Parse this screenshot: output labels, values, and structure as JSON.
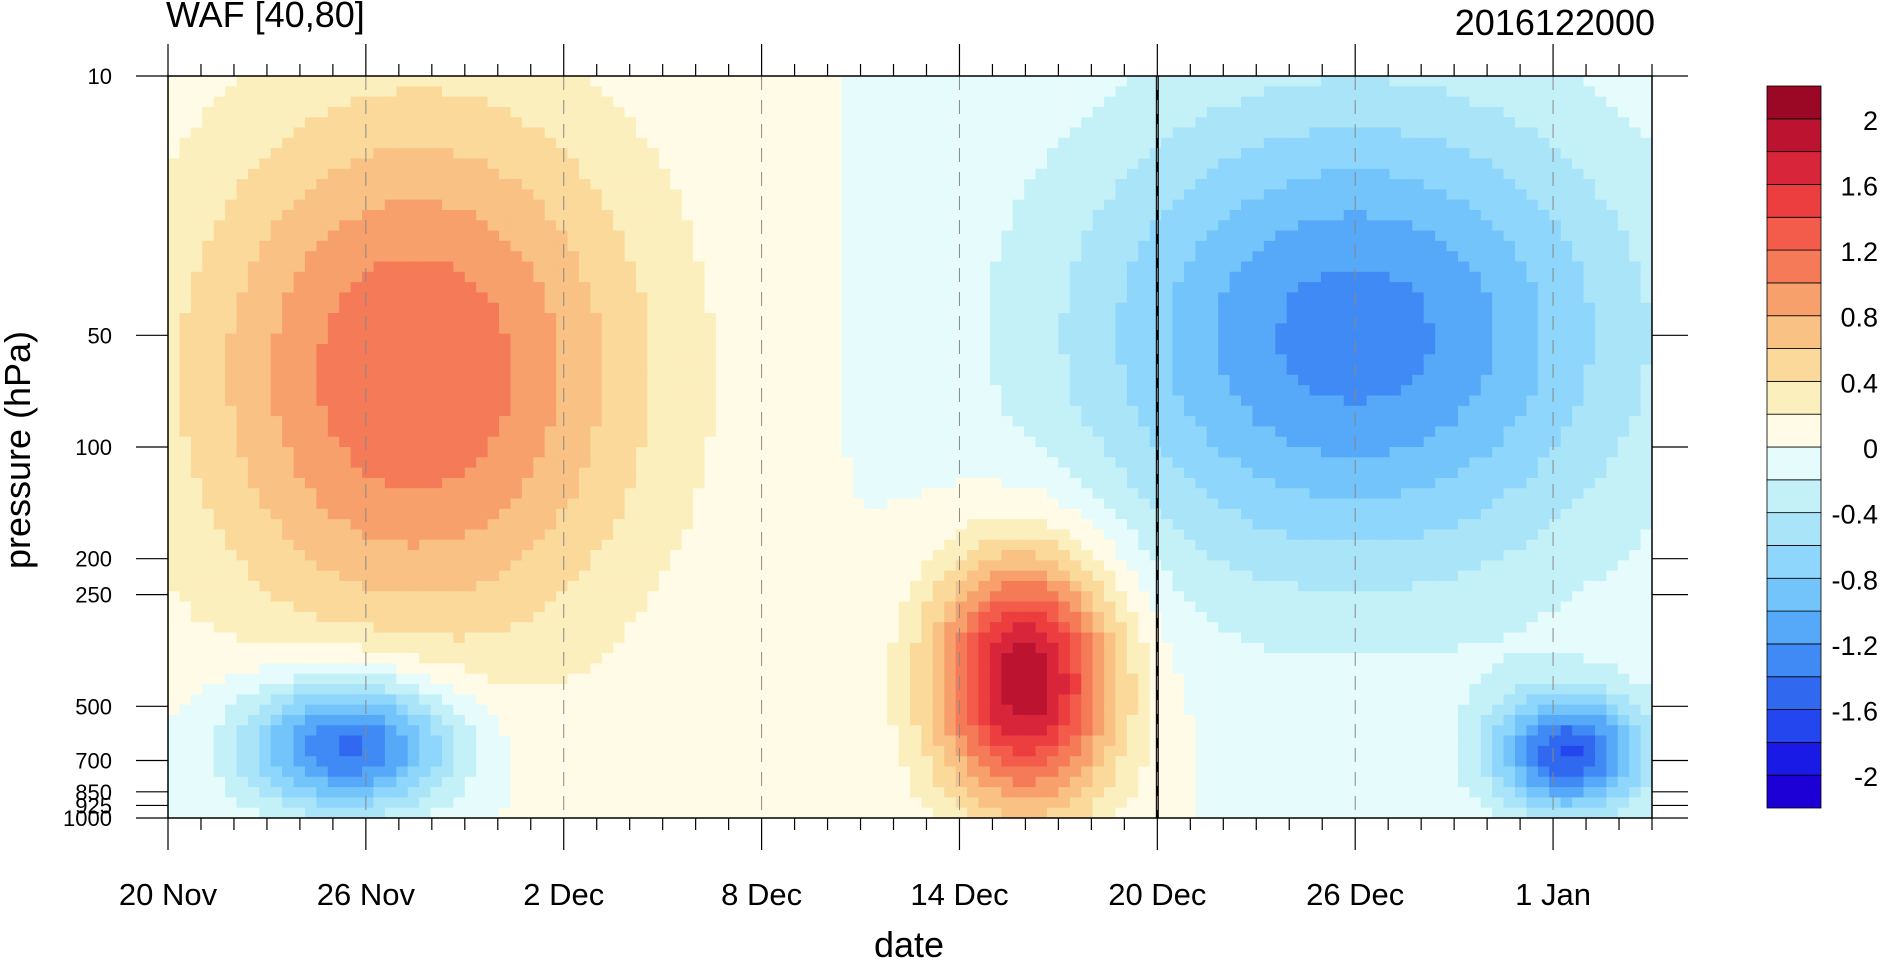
{
  "chart_data": {
    "type": "heatmap",
    "subtype": "filled-contour",
    "title": "WAF [40,80]",
    "subtitle_right": "2016122000",
    "xlabel": "date",
    "ylabel": "pressure (hPa)",
    "x_ticks": [
      "20 Nov",
      "26 Nov",
      "2 Dec",
      "8 Dec",
      "14 Dec",
      "20 Dec",
      "26 Dec",
      "1 Jan"
    ],
    "x_tick_dates": [
      "2016-11-20",
      "2016-11-26",
      "2016-12-02",
      "2016-12-08",
      "2016-12-14",
      "2016-12-20",
      "2016-12-26",
      "2017-01-01"
    ],
    "xlim": [
      "2016-11-20",
      "2017-01-04"
    ],
    "y_scale": "log",
    "y_reversed": true,
    "y_ticks": [
      10,
      50,
      100,
      200,
      250,
      500,
      700,
      850,
      925,
      1000
    ],
    "y_tick_labels": [
      "10",
      "50",
      "100",
      "200",
      "250",
      "500",
      "700",
      "850",
      "925",
      "1000"
    ],
    "ylim": [
      1000,
      10
    ],
    "vertical_line": {
      "date": "2016-12-20"
    },
    "colorbar": {
      "levels": [
        -2.2,
        -2.0,
        -1.8,
        -1.6,
        -1.4,
        -1.2,
        -1.0,
        -0.8,
        -0.6,
        -0.4,
        -0.2,
        0.0,
        0.2,
        0.4,
        0.6,
        0.8,
        1.0,
        1.2,
        1.4,
        1.6,
        1.8,
        2.0,
        2.2
      ],
      "tick_values": [
        2,
        1.6,
        1.2,
        0.8,
        0.4,
        0,
        -0.4,
        -0.8,
        -1.2,
        -1.6,
        -2
      ],
      "tick_labels": [
        "2",
        "1.6",
        "1.2",
        "0.8",
        "0.4",
        "0",
        "-0.4",
        "-0.8",
        "-1.2",
        "-1.6",
        "-2"
      ],
      "colors": [
        "#1c00d6",
        "#1a1ae6",
        "#2446ee",
        "#3068f0",
        "#3f8af4",
        "#56a8f8",
        "#72c4fa",
        "#8ed6fb",
        "#a9e4f8",
        "#c4f1f8",
        "#e6fbfb",
        "#fffbe6",
        "#fcefbe",
        "#fbd99a",
        "#f9c183",
        "#f7a06c",
        "#f57b58",
        "#f35b4a",
        "#ec3d3f",
        "#d9253a",
        "#bb1330",
        "#9a0826"
      ]
    },
    "features": [
      {
        "name": "Positive WAF, upper troposphere to stratosphere",
        "date_start": "2016-11-20",
        "date_end": "2016-12-05",
        "p_top": 10,
        "p_bottom": 400,
        "peak_value": 1.2
      },
      {
        "name": "Negative WAF near surface",
        "date_start": "2016-11-22",
        "date_end": "2016-11-29",
        "p_top": 400,
        "p_bottom": 1000,
        "peak_value": -1.6
      },
      {
        "name": "Positive WAF burst in troposphere",
        "date_start": "2016-12-13",
        "date_end": "2016-12-19",
        "p_top": 180,
        "p_bottom": 1000,
        "peak_value": 2.0
      },
      {
        "name": "Negative WAF, stratosphere after 20 Dec",
        "date_start": "2016-12-17",
        "date_end": "2017-01-04",
        "p_top": 10,
        "p_bottom": 250,
        "peak_value": -1.3
      },
      {
        "name": "Negative WAF near surface, early January",
        "date_start": "2016-12-30",
        "date_end": "2017-01-04",
        "p_top": 450,
        "p_bottom": 1000,
        "peak_value": -1.6
      }
    ]
  }
}
